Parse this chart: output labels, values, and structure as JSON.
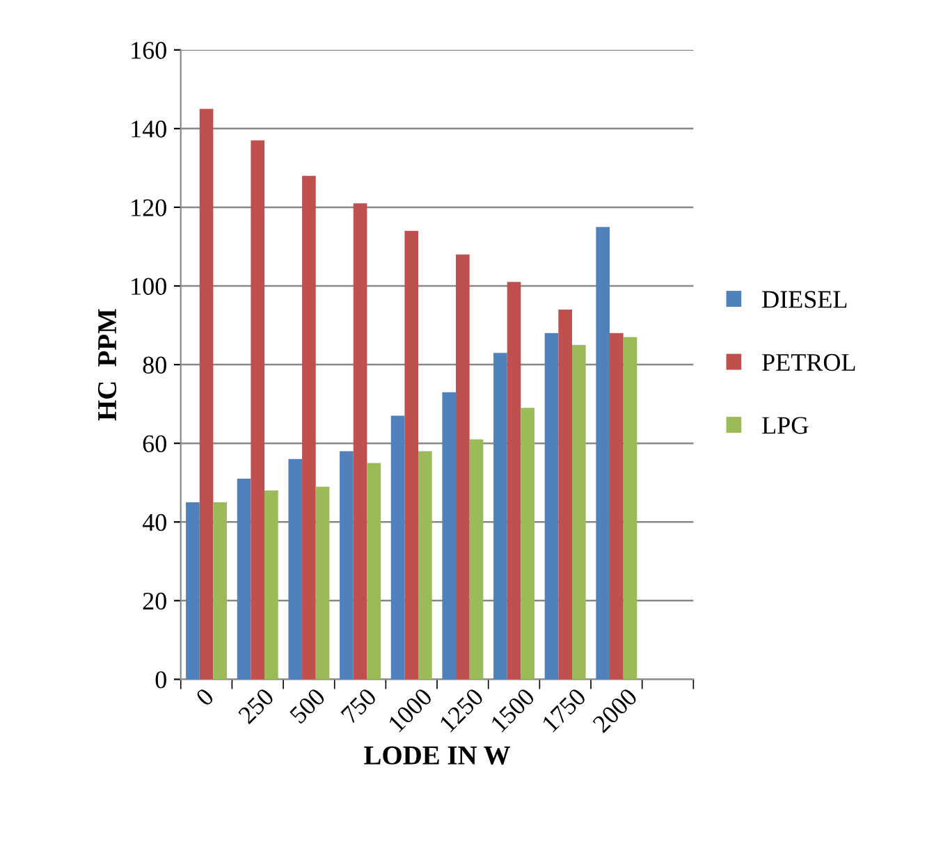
{
  "chart_data": {
    "type": "bar",
    "xlabel": "LODE IN W",
    "ylabel": "HC  PPM",
    "categories": [
      "0",
      "250",
      "500",
      "750",
      "1000",
      "1250",
      "1500",
      "1750",
      "2000",
      null
    ],
    "series": [
      {
        "name": "DIESEL",
        "color": "#4f81bd",
        "values": [
          45,
          51,
          56,
          58,
          67,
          73,
          83,
          88,
          115,
          null
        ]
      },
      {
        "name": "PETROL",
        "color": "#c0504d",
        "values": [
          145,
          137,
          128,
          121,
          114,
          108,
          101,
          94,
          88,
          null
        ]
      },
      {
        "name": "LPG",
        "color": "#9bbb59",
        "values": [
          45,
          48,
          49,
          55,
          58,
          61,
          69,
          85,
          87,
          null
        ]
      }
    ],
    "ylim": [
      0,
      160
    ],
    "yticks": [
      0,
      20,
      40,
      60,
      80,
      100,
      120,
      140,
      160
    ],
    "grid": "y",
    "legend": "right"
  }
}
